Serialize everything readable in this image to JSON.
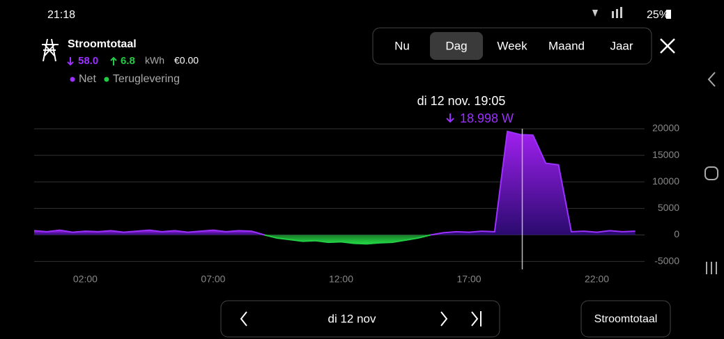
{
  "status_bar": {
    "time": "21:18",
    "battery": "25%"
  },
  "header": {
    "title": "Stroomtotaal",
    "import": "58.0",
    "export": "6.8",
    "unit": "kWh",
    "cost": "€0.00"
  },
  "tabs": [
    "Nu",
    "Dag",
    "Week",
    "Maand",
    "Jaar"
  ],
  "active_tab": 1,
  "chart_data": {
    "type": "area",
    "annotation": {
      "date": "di 12 nov. 19:05",
      "value": "18.998 W"
    },
    "cursor_x": 19.083,
    "x": [
      0,
      0.5,
      1,
      1.5,
      2,
      2.5,
      3,
      3.5,
      4,
      4.5,
      5,
      5.5,
      6,
      6.5,
      7,
      7.5,
      8,
      8.5,
      9,
      9.5,
      10,
      10.5,
      11,
      11.5,
      12,
      12.5,
      13,
      13.5,
      14,
      14.5,
      15,
      15.5,
      16,
      16.5,
      17,
      17.5,
      18,
      18.5,
      19,
      19.5,
      20,
      20.5,
      21,
      21.5,
      22,
      22.5,
      23,
      23.5
    ],
    "series": [
      {
        "name": "Net",
        "color": "#9b30ff",
        "values": [
          800,
          600,
          900,
          500,
          700,
          600,
          800,
          500,
          700,
          900,
          600,
          800,
          500,
          700,
          900,
          600,
          800,
          700,
          0,
          null,
          null,
          null,
          null,
          null,
          null,
          null,
          null,
          null,
          null,
          null,
          null,
          0,
          400,
          600,
          500,
          700,
          600,
          19500,
          18900,
          18800,
          13500,
          13200,
          600,
          700,
          500,
          800,
          600,
          700
        ]
      },
      {
        "name": "Teruglevering",
        "color": "#22cc44",
        "values": [
          null,
          null,
          null,
          null,
          null,
          null,
          null,
          null,
          null,
          null,
          null,
          null,
          null,
          null,
          null,
          null,
          null,
          null,
          0,
          -600,
          -900,
          -1200,
          -1100,
          -1400,
          -1300,
          -1600,
          -1700,
          -1500,
          -1400,
          -1000,
          -600,
          0,
          null,
          null,
          null,
          null,
          null,
          null,
          null,
          null,
          null,
          null,
          null,
          null,
          null,
          null,
          null,
          null
        ]
      }
    ],
    "xlim": [
      0,
      24
    ],
    "xticks": [
      {
        "value": 2,
        "label": "02:00"
      },
      {
        "value": 7,
        "label": "07:00"
      },
      {
        "value": 12,
        "label": "12:00"
      },
      {
        "value": 17,
        "label": "17:00"
      },
      {
        "value": 22,
        "label": "22:00"
      }
    ],
    "ylim": [
      -6500,
      20000
    ],
    "yticks": [
      -5000,
      0,
      5000,
      10000,
      15000,
      20000
    ],
    "grid": true
  },
  "footer": {
    "date": "di 12 nov",
    "button": "Stroomtotaal"
  }
}
